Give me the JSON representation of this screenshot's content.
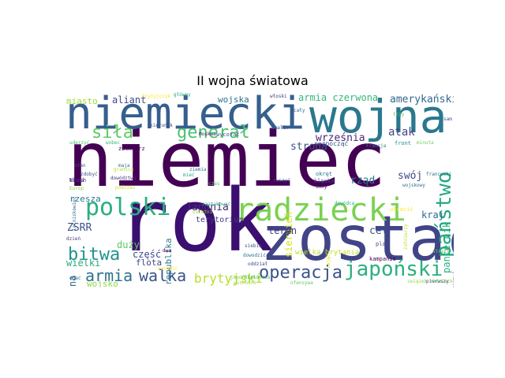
{
  "title": "II wojna światowa",
  "words": [
    {
      "text": "niemiec",
      "color": "#440154"
    },
    {
      "text": "rok",
      "color": "#3b0f70"
    },
    {
      "text": "zostać",
      "color": "#414487"
    },
    {
      "text": "niemiecki",
      "color": "#355f8d"
    },
    {
      "text": "wojna",
      "color": "#2a788e"
    },
    {
      "text": "radziecki",
      "color": "#7ad151"
    },
    {
      "text": "polski",
      "color": "#29af7f"
    },
    {
      "text": "operacja",
      "color": "#3b528b"
    },
    {
      "text": "japoński",
      "color": "#2ab07f"
    },
    {
      "text": "bitwa",
      "color": "#21918c"
    },
    {
      "text": "armia",
      "color": "#2c728e"
    },
    {
      "text": "walka",
      "color": "#3b528b"
    },
    {
      "text": "siła",
      "color": "#5ec962"
    },
    {
      "text": "generał",
      "color": "#4ac16d"
    },
    {
      "text": "państwo",
      "color": "#22a884"
    },
    {
      "text": "brytyjski",
      "color": "#b5de2b"
    },
    {
      "text": "Japonia",
      "color": "#482878"
    },
    {
      "text": "miasto",
      "color": "#a0da39"
    },
    {
      "text": "aliant",
      "color": "#3e4a89"
    },
    {
      "text": "wojska",
      "color": "#2c728e"
    },
    {
      "text": "armia czerwona",
      "color": "#35b779"
    },
    {
      "text": "amerykański",
      "color": "#31688e"
    },
    {
      "text": "września",
      "color": "#482878"
    },
    {
      "text": "atak",
      "color": "#414487"
    },
    {
      "text": "strona",
      "color": "#3b528b"
    },
    {
      "text": "sierpień",
      "color": "#d2e21b"
    },
    {
      "text": "rząd",
      "color": "#2a788e"
    },
    {
      "text": "swój",
      "color": "#3e4a89"
    },
    {
      "text": "kraj",
      "color": "#31688e"
    },
    {
      "text": "cel",
      "color": "#3b528b"
    },
    {
      "text": "teren",
      "color": "#443983"
    },
    {
      "text": "ZSRR",
      "color": "#3b528b"
    },
    {
      "text": "rzesza",
      "color": "#2a788e"
    },
    {
      "text": "wielki",
      "color": "#27ad81"
    },
    {
      "text": "wojsko",
      "color": "#8fd744"
    },
    {
      "text": "duży",
      "color": "#5ec962"
    },
    {
      "text": "część",
      "color": "#3e4a89"
    },
    {
      "text": "flota",
      "color": "#404688"
    },
    {
      "text": "obrona",
      "color": "#31688e"
    },
    {
      "text": "republika",
      "color": "#2a788e"
    },
    {
      "text": "pancernik",
      "color": "#2ab07f"
    },
    {
      "text": "terytorium",
      "color": "#443983"
    },
    {
      "text": "wielka brytania",
      "color": "#c2df23"
    },
    {
      "text": "Włoch",
      "color": "#46327e"
    },
    {
      "text": "rozpocząć",
      "color": "#3b528b"
    },
    {
      "text": "Francja",
      "color": "#26828e"
    },
    {
      "text": "front",
      "color": "#21918c"
    },
    {
      "text": "minuta",
      "color": "#6ccd5a"
    },
    {
      "text": "kampania",
      "color": "#440154"
    },
    {
      "text": "dowódca",
      "color": "#27ad81"
    },
    {
      "text": "klęska",
      "color": "#414487"
    },
    {
      "text": "inny",
      "color": "#481467"
    },
    {
      "text": "plan",
      "color": "#3e4a89"
    },
    {
      "text": "główny",
      "color": "#22a884"
    },
    {
      "text": "włoski",
      "color": "#443983"
    },
    {
      "text": "cały",
      "color": "#31688e"
    },
    {
      "text": "Stalin",
      "color": "#3b528b"
    },
    {
      "text": "trzy",
      "color": "#5ec962"
    },
    {
      "text": "wojskowy",
      "color": "#2c728e"
    },
    {
      "text": "Brytyjczyk",
      "color": "#fde725"
    },
    {
      "text": "żołnierz",
      "color": "#440154"
    },
    {
      "text": "zdobyć",
      "color": "#3b528b"
    },
    {
      "text": "granica",
      "color": "#b5de2b"
    },
    {
      "text": "dowództwo",
      "color": "#46327e"
    },
    {
      "text": "podczas",
      "color": "#d2e21b"
    },
    {
      "text": "linia",
      "color": "#481467"
    },
    {
      "text": "Europ",
      "color": "#8fd744"
    },
    {
      "text": "udać",
      "color": "#31688e"
    },
    {
      "text": "dzień",
      "color": "#443983"
    },
    {
      "text": "zatopić",
      "color": "#fde725"
    },
    {
      "text": "japońskie",
      "color": "#7ad151"
    },
    {
      "text": "okręt",
      "color": "#2a788e"
    },
    {
      "text": "zająć",
      "color": "#d2e21b"
    },
    {
      "text": "ruszyć",
      "color": "#3b528b"
    },
    {
      "text": "czas",
      "color": "#5ec962"
    },
    {
      "text": "ostatni",
      "color": "#a0da39"
    },
    {
      "text": "dwa",
      "color": "#440154"
    },
    {
      "text": "siebie",
      "color": "#3b528b"
    },
    {
      "text": "oddział",
      "color": "#3e4a89"
    },
    {
      "text": "dowodzić",
      "color": "#2c728e"
    },
    {
      "text": "wschodni",
      "color": "#a0da39"
    },
    {
      "text": "ofensywa",
      "color": "#5ec962"
    },
    {
      "text": "Finlandia",
      "color": "#4ac16d"
    },
    {
      "text": "związek radziecki",
      "color": "#8fd744"
    },
    {
      "text": "pierwszy",
      "color": "#3b528b"
    },
    {
      "text": "stan zjednoczyć",
      "color": "#443983"
    },
    {
      "text": "strata",
      "color": "#6ccd5a"
    },
    {
      "text": "utracić",
      "color": "#fde725"
    },
    {
      "text": "francuski",
      "color": "#2c728e"
    },
    {
      "text": "wycofać",
      "color": "#3b528b"
    },
    {
      "text": "Moskwa",
      "color": "#481467"
    },
    {
      "text": "uderzyć",
      "color": "#4ac16d"
    },
    {
      "text": "wobec",
      "color": "#35b779"
    },
    {
      "text": "stan",
      "color": "#3b528b"
    },
    {
      "text": "maja",
      "color": "#2c728e"
    },
    {
      "text": "lotniskowiec",
      "color": "#31688e"
    },
    {
      "text": "sam",
      "color": "#3b528b"
    },
    {
      "text": "ziemia",
      "color": "#2a788e"
    },
    {
      "text": "zaatakować",
      "color": "#29af7f"
    },
    {
      "text": "kierunek",
      "color": "#3e4a89"
    },
    {
      "text": "armia niemiecki",
      "color": "#2c728e"
    },
    {
      "text": "sycylia",
      "color": "#3b528b"
    },
    {
      "text": "mieć",
      "color": "#22a884"
    },
    {
      "text": "żołnierzy",
      "color": "#b5de2b"
    }
  ]
}
